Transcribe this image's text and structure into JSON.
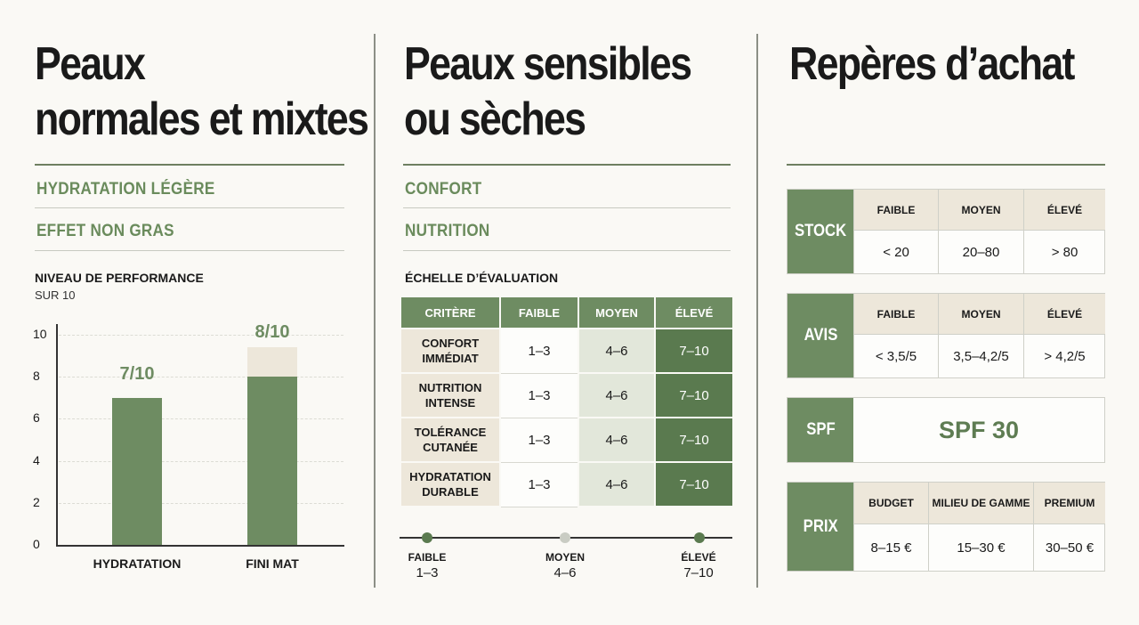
{
  "col1": {
    "title_line1": "Peaux",
    "title_line2": "normales et mixtes",
    "tag1": "HYDRATATION LÉGÈRE",
    "tag2": "EFFET NON GRAS",
    "chart_title": "NIVEAU DE PERFORMANCE",
    "chart_subtitle": "SUR 10"
  },
  "chart_data": {
    "type": "bar",
    "title": "NIVEAU DE PERFORMANCE",
    "subtitle": "SUR 10",
    "categories": [
      "HYDRATATION",
      "FINI MAT"
    ],
    "values": [
      7,
      8
    ],
    "data_labels": [
      "7/10",
      "8/10"
    ],
    "yticks": [
      "0",
      "2",
      "4",
      "6",
      "8",
      "10"
    ],
    "ylim": [
      0,
      10
    ],
    "grid": true,
    "colors": {
      "bar": "#6e8c62",
      "bar_background": "#ede7da"
    }
  },
  "col2": {
    "title_line1": "Peaux sensibles",
    "title_line2": "ou sèches",
    "tag1": "CONFORT",
    "tag2": "NUTRITION",
    "scale_title": "ÉCHELLE D’ÉVALUATION",
    "table": {
      "headers": [
        "CRITÈRE",
        "FAIBLE",
        "MOYEN",
        "ÉLEVÉ"
      ],
      "rows": [
        {
          "crit_l1": "CONFORT",
          "crit_l2": "IMMÉDIAT",
          "faible": "1–3",
          "moyen": "4–6",
          "eleve": "7–10"
        },
        {
          "crit_l1": "NUTRITION",
          "crit_l2": "INTENSE",
          "faible": "1–3",
          "moyen": "4–6",
          "eleve": "7–10"
        },
        {
          "crit_l1": "TOLÉRANCE",
          "crit_l2": "CUTANÉE",
          "faible": "1–3",
          "moyen": "4–6",
          "eleve": "7–10"
        },
        {
          "crit_l1": "HYDRATATION",
          "crit_l2": "DURABLE",
          "faible": "1–3",
          "moyen": "4–6",
          "eleve": "7–10"
        }
      ]
    },
    "legend": [
      {
        "label": "FAIBLE",
        "range": "1–3",
        "color": "#5a7a4f"
      },
      {
        "label": "MOYEN",
        "range": "4–6",
        "color": "#c9ccc3"
      },
      {
        "label": "ÉLEVÉ",
        "range": "7–10",
        "color": "#5a7a4f"
      }
    ]
  },
  "col3": {
    "title": "Repères d’achat",
    "stock": {
      "label": "STOCK",
      "headers": [
        "FAIBLE",
        "MOYEN",
        "ÉLEVÉ"
      ],
      "values": [
        "< 20",
        "20–80",
        "> 80"
      ]
    },
    "avis": {
      "label": "AVIS",
      "headers": [
        "FAIBLE",
        "MOYEN",
        "ÉLEVÉ"
      ],
      "values": [
        "< 3,5/5",
        "3,5–4,2/5",
        "> 4,2/5"
      ]
    },
    "spf": {
      "label": "SPF",
      "value": "SPF 30"
    },
    "prix": {
      "label": "PRIX",
      "headers": [
        "BUDGET",
        "MILIEU DE GAMME",
        "PREMIUM"
      ],
      "values": [
        "8–15 €",
        "15–30 €",
        "30–50 €"
      ]
    }
  }
}
